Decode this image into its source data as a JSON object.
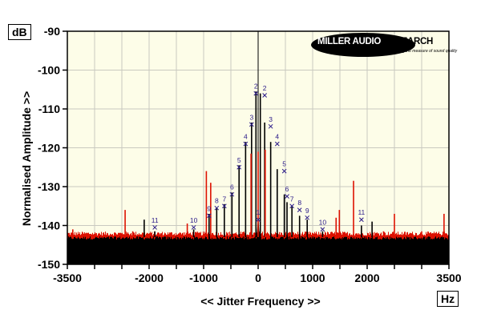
{
  "chart_data": {
    "type": "line",
    "xlabel": "<< Jitter Frequency >>",
    "ylabel": "Normalised Amplitude >>",
    "x_unit": "Hz",
    "y_unit": "dB",
    "xlim": [
      -3500,
      3500
    ],
    "ylim": [
      -150,
      -90
    ],
    "x_ticks": [
      -3500,
      -3000,
      -2500,
      -2000,
      -1500,
      -1000,
      -500,
      0,
      500,
      1000,
      1500,
      2000,
      2500,
      3000,
      3500
    ],
    "x_tick_labels": [
      "-3500",
      "",
      "",
      "-2000",
      "",
      "-1000",
      "",
      "0",
      "",
      "1000",
      "",
      "2000",
      "",
      "",
      "3500"
    ],
    "y_ticks": [
      -150,
      -140,
      -130,
      -120,
      -110,
      -100,
      -90
    ],
    "y_tick_labels": [
      "-150",
      "-140",
      "-130",
      "-120",
      "-110",
      "-100",
      "-90"
    ],
    "grid": true,
    "noise_floor_db": -143,
    "series": [
      {
        "color": "#000000",
        "spikes": [
          [
            -1895,
            -141.5
          ],
          [
            -1182,
            -141
          ],
          [
            -2090,
            -138.5
          ],
          [
            2090,
            -139
          ],
          [
            1182,
            -141.5
          ],
          [
            1895,
            -140
          ],
          [
            -900,
            -137
          ],
          [
            -760,
            -135.5
          ],
          [
            -620,
            -134.5
          ],
          [
            -480,
            -131.5
          ],
          [
            -350,
            -124.5
          ],
          [
            -230,
            -118.5
          ],
          [
            -120,
            -113.5
          ],
          [
            -40,
            -105.5
          ],
          [
            40,
            -106
          ],
          [
            120,
            -113.5
          ],
          [
            230,
            -118.5
          ],
          [
            350,
            -125.5
          ],
          [
            480,
            -132
          ],
          [
            530,
            -134
          ],
          [
            620,
            -135
          ],
          [
            760,
            -137.5
          ],
          [
            900,
            -138.5
          ],
          [
            0,
            -142
          ]
        ]
      },
      {
        "color": "#dd1100",
        "spikes": [
          [
            -2440,
            -136
          ],
          [
            -1300,
            -139.5
          ],
          [
            -950,
            -126
          ],
          [
            -870,
            -129
          ],
          [
            -130,
            -121.5
          ],
          [
            0,
            -121
          ],
          [
            130,
            -120.5
          ],
          [
            1430,
            -138
          ],
          [
            1490,
            -136
          ],
          [
            1750,
            -128.5
          ],
          [
            2500,
            -137
          ],
          [
            3410,
            -137
          ],
          [
            -3400,
            -141
          ],
          [
            -2300,
            -141.5
          ],
          [
            2300,
            -141.5
          ],
          [
            3000,
            -141.5
          ]
        ]
      }
    ],
    "harmonic_markers": [
      {
        "label": "2",
        "x": -40,
        "y": -106
      },
      {
        "label": "2",
        "x": 120,
        "y": -106.5
      },
      {
        "label": "3",
        "x": -120,
        "y": -114
      },
      {
        "label": "3",
        "x": 230,
        "y": -114.5
      },
      {
        "label": "4",
        "x": -230,
        "y": -119
      },
      {
        "label": "4",
        "x": 350,
        "y": -119
      },
      {
        "label": "5",
        "x": -350,
        "y": -125
      },
      {
        "label": "5",
        "x": 480,
        "y": -126
      },
      {
        "label": "6",
        "x": -480,
        "y": -132
      },
      {
        "label": "6",
        "x": 530,
        "y": -132.5
      },
      {
        "label": "7",
        "x": -620,
        "y": -135
      },
      {
        "label": "7",
        "x": 620,
        "y": -135
      },
      {
        "label": "8",
        "x": -760,
        "y": -135.5
      },
      {
        "label": "8",
        "x": 760,
        "y": -136
      },
      {
        "label": "9",
        "x": -900,
        "y": -137.5
      },
      {
        "label": "9",
        "x": 900,
        "y": -138
      },
      {
        "label": "10",
        "x": -1182,
        "y": -140.5
      },
      {
        "label": "10",
        "x": 1182,
        "y": -141
      },
      {
        "label": "11",
        "x": -1895,
        "y": -140.5
      },
      {
        "label": "11",
        "x": 1895,
        "y": -138.5
      },
      {
        "label": "1",
        "x": 0,
        "y": -138.5
      }
    ]
  },
  "logo": {
    "brand_lead": "MILLER AUDIO ",
    "brand_tail": "RESEARCH",
    "tagline": "Setting the measure of sound quality"
  }
}
